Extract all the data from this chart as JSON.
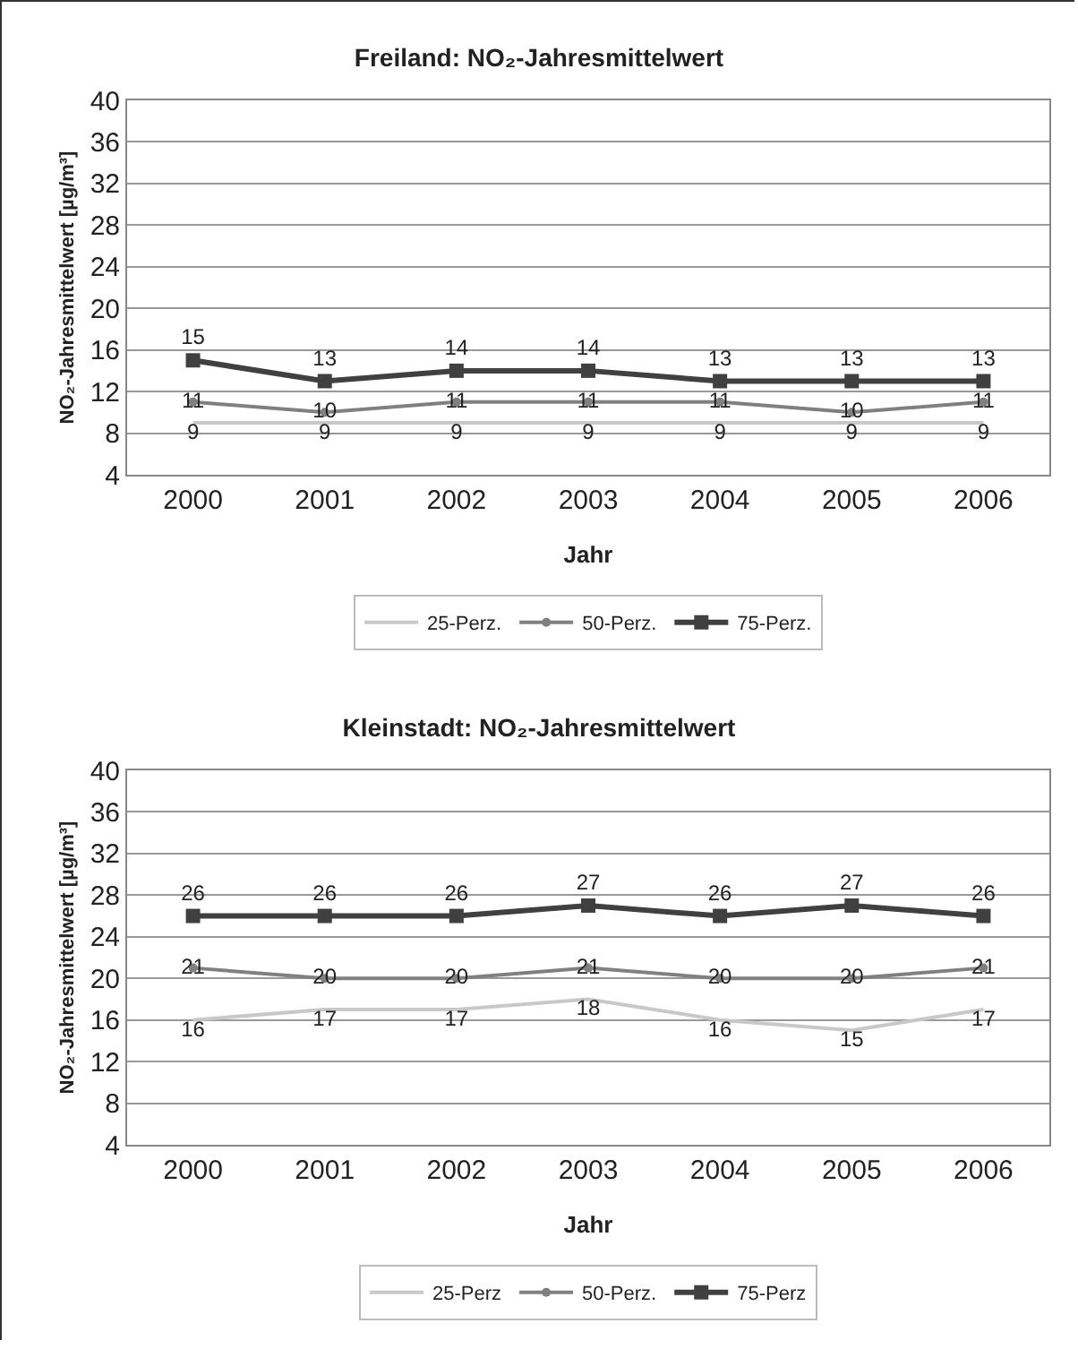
{
  "chart_data": [
    {
      "type": "line",
      "title": "Freiland: NO₂-Jahresmittelwert",
      "xlabel": "Jahr",
      "ylabel": "NO₂-Jahresmittelwert [µg/m³]",
      "categories": [
        "2000",
        "2001",
        "2002",
        "2003",
        "2004",
        "2005",
        "2006"
      ],
      "ylim": [
        4,
        40
      ],
      "yticks": [
        4,
        8,
        12,
        16,
        20,
        24,
        28,
        32,
        36,
        40
      ],
      "grid": "y",
      "legend": "bottom",
      "data_labels": true,
      "series": [
        {
          "name": "25-Perz.",
          "color": "#c8c8c8",
          "marker": "none",
          "values": [
            9,
            9,
            9,
            9,
            9,
            9,
            9
          ]
        },
        {
          "name": "50-Perz.",
          "color": "#808080",
          "marker": "circle",
          "values": [
            11,
            10,
            11,
            11,
            11,
            10,
            11
          ]
        },
        {
          "name": "75-Perz.",
          "color": "#404040",
          "marker": "square",
          "values": [
            15,
            13,
            14,
            14,
            13,
            13,
            13
          ]
        }
      ]
    },
    {
      "type": "line",
      "title": "Kleinstadt: NO₂-Jahresmittelwert",
      "xlabel": "Jahr",
      "ylabel": "NO₂-Jahresmittelwert [µg/m³]",
      "categories": [
        "2000",
        "2001",
        "2002",
        "2003",
        "2004",
        "2005",
        "2006"
      ],
      "ylim": [
        4,
        40
      ],
      "yticks": [
        4,
        8,
        12,
        16,
        20,
        24,
        28,
        32,
        36,
        40
      ],
      "grid": "y",
      "legend": "bottom",
      "data_labels": true,
      "series": [
        {
          "name": "25-Perz",
          "color": "#c8c8c8",
          "marker": "none",
          "values": [
            16,
            17,
            17,
            18,
            16,
            15,
            17
          ]
        },
        {
          "name": "50-Perz.",
          "color": "#808080",
          "marker": "circle",
          "values": [
            21,
            20,
            20,
            21,
            20,
            20,
            21
          ]
        },
        {
          "name": "75-Perz",
          "color": "#404040",
          "marker": "square",
          "values": [
            26,
            26,
            26,
            27,
            26,
            27,
            26
          ]
        }
      ]
    }
  ]
}
